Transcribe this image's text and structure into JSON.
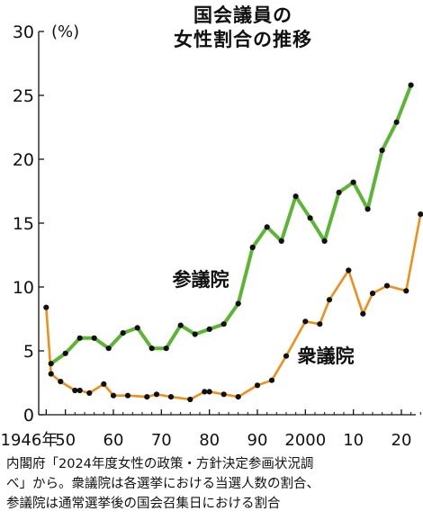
{
  "title": {
    "line1": "国会議員の",
    "line2": "女性割合の推移"
  },
  "note": {
    "line1": "内閣府「2024年度女性の政策・方針決定参画状況調",
    "line2": "べ」から。衆議院は各選挙における当選人数の割合、",
    "line3": "参議院は通常選挙後の国会召集日における割合"
  },
  "chart_data": {
    "type": "line",
    "title": "国会議員の女性割合の推移",
    "y_unit": "(%)",
    "ylim": [
      0,
      30
    ],
    "y_ticks": [
      0,
      5,
      10,
      15,
      20,
      25,
      30
    ],
    "xlim": [
      1945,
      2025
    ],
    "x_ticks": [
      {
        "value": 1946,
        "label": "1946年"
      },
      {
        "value": 1950,
        "label": "50"
      },
      {
        "value": 1960,
        "label": "60"
      },
      {
        "value": 1970,
        "label": "70"
      },
      {
        "value": 1980,
        "label": "80"
      },
      {
        "value": 1990,
        "label": "90"
      },
      {
        "value": 2000,
        "label": "2000"
      },
      {
        "value": 2010,
        "label": "10"
      },
      {
        "value": 2020,
        "label": "20"
      }
    ],
    "grid": false,
    "colors": {
      "sangiin": "#5db535",
      "shugiin": "#ee8f1c",
      "marker": "#111111",
      "axis": "#111111"
    },
    "series": [
      {
        "name": "参議院",
        "key": "sangiin",
        "points": [
          [
            1947,
            4.0
          ],
          [
            1950,
            4.8
          ],
          [
            1953,
            6.0
          ],
          [
            1956,
            6.0
          ],
          [
            1959,
            5.2
          ],
          [
            1962,
            6.4
          ],
          [
            1965,
            6.8
          ],
          [
            1968,
            5.2
          ],
          [
            1971,
            5.2
          ],
          [
            1974,
            7.0
          ],
          [
            1977,
            6.3
          ],
          [
            1980,
            6.7
          ],
          [
            1983,
            7.1
          ],
          [
            1986,
            8.7
          ],
          [
            1989,
            13.1
          ],
          [
            1992,
            14.7
          ],
          [
            1995,
            13.6
          ],
          [
            1998,
            17.1
          ],
          [
            2001,
            15.4
          ],
          [
            2004,
            13.6
          ],
          [
            2007,
            17.4
          ],
          [
            2010,
            18.2
          ],
          [
            2013,
            16.1
          ],
          [
            2016,
            20.7
          ],
          [
            2019,
            22.9
          ],
          [
            2022,
            25.8
          ]
        ]
      },
      {
        "name": "衆議院",
        "key": "shugiin",
        "points": [
          [
            1946,
            8.4
          ],
          [
            1947,
            3.2
          ],
          [
            1949,
            2.6
          ],
          [
            1952,
            1.9
          ],
          [
            1953,
            1.9
          ],
          [
            1955,
            1.7
          ],
          [
            1958,
            2.4
          ],
          [
            1960,
            1.5
          ],
          [
            1963,
            1.5
          ],
          [
            1967,
            1.4
          ],
          [
            1969,
            1.6
          ],
          [
            1972,
            1.4
          ],
          [
            1976,
            1.2
          ],
          [
            1979,
            1.8
          ],
          [
            1980,
            1.8
          ],
          [
            1983,
            1.6
          ],
          [
            1986,
            1.4
          ],
          [
            1990,
            2.3
          ],
          [
            1993,
            2.7
          ],
          [
            1996,
            4.6
          ],
          [
            2000,
            7.3
          ],
          [
            2003,
            7.1
          ],
          [
            2005,
            9.0
          ],
          [
            2009,
            11.3
          ],
          [
            2012,
            7.9
          ],
          [
            2014,
            9.5
          ],
          [
            2017,
            10.1
          ],
          [
            2021,
            9.7
          ],
          [
            2024,
            15.7
          ]
        ]
      }
    ]
  }
}
